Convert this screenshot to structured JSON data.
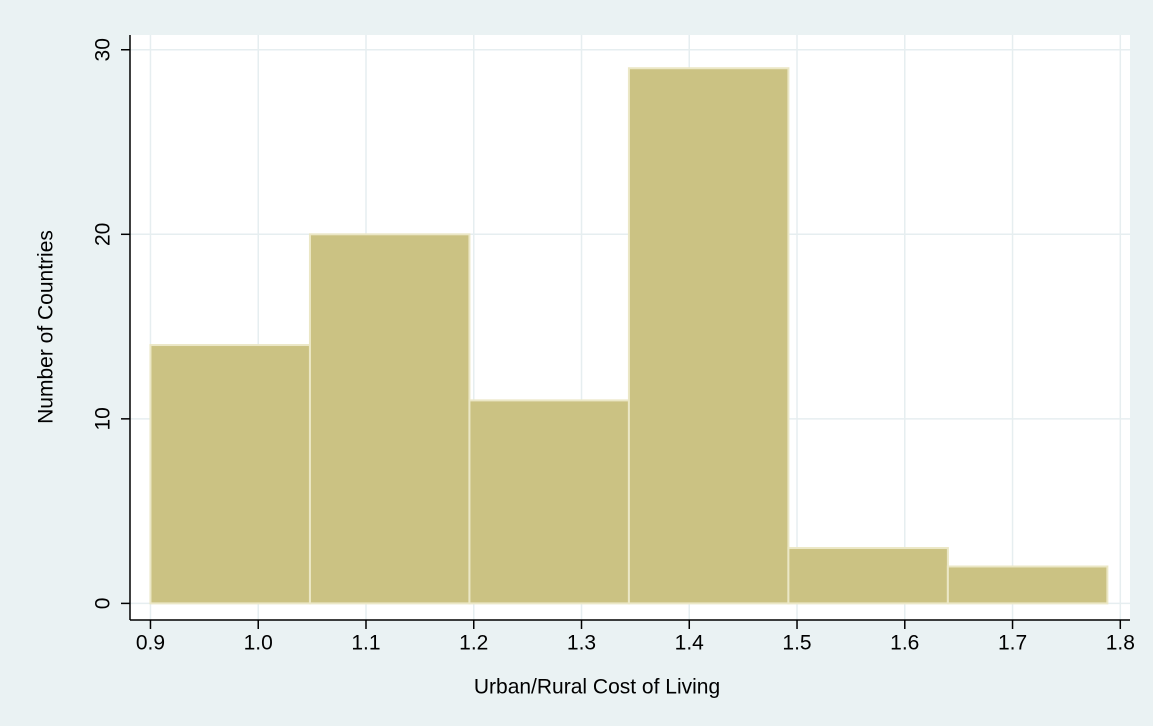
{
  "chart_data": {
    "type": "histogram",
    "x_label": "Urban/Rural Cost of Living",
    "y_label": "Number of Countries",
    "bins": [
      0.9,
      1.048,
      1.196,
      1.344,
      1.492,
      1.64,
      1.788
    ],
    "values": [
      14,
      20,
      11,
      29,
      3,
      2
    ],
    "color": "#cbc283",
    "xlim": [
      0.881,
      1.809
    ],
    "ylim": [
      -0.9,
      30.8
    ],
    "xticks": [
      0.9,
      {
        "value": 1,
        "label": "1.0"
      },
      1.1,
      1.2,
      1.3,
      1.4,
      1.5,
      1.6,
      1.7,
      1.8
    ],
    "yticks": [
      0,
      10,
      20,
      30
    ],
    "grid": true
  }
}
